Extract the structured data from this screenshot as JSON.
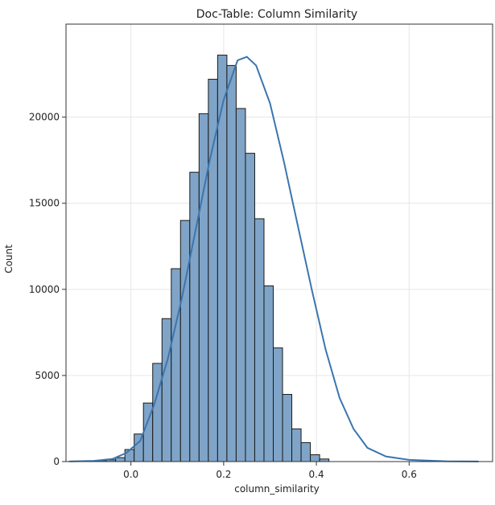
{
  "chart_data": {
    "type": "bar",
    "title": "Doc-Table: Column Similarity",
    "xlabel": "column_similarity",
    "ylabel": "Count",
    "xlim": [
      -0.14,
      0.78
    ],
    "ylim": [
      0,
      25400
    ],
    "xticks": [
      0.0,
      0.2,
      0.4,
      0.6
    ],
    "xtick_labels": [
      "0.0",
      "0.2",
      "0.4",
      "0.6"
    ],
    "yticks": [
      0,
      5000,
      10000,
      15000,
      20000
    ],
    "ytick_labels": [
      "0",
      "5000",
      "10000",
      "15000",
      "20000"
    ],
    "grid": true,
    "bar_color": "#7fa4c7",
    "bar_edge_color": "#1a1a1a",
    "kde_color": "#3b75af",
    "bins": [
      {
        "x0": -0.133,
        "x1": -0.113,
        "count": 20
      },
      {
        "x0": -0.113,
        "x1": -0.093,
        "count": 30
      },
      {
        "x0": -0.093,
        "x1": -0.073,
        "count": 40
      },
      {
        "x0": -0.073,
        "x1": -0.053,
        "count": 60
      },
      {
        "x0": -0.053,
        "x1": -0.033,
        "count": 100
      },
      {
        "x0": -0.033,
        "x1": -0.013,
        "count": 230
      },
      {
        "x0": -0.013,
        "x1": 0.007,
        "count": 700
      },
      {
        "x0": 0.007,
        "x1": 0.027,
        "count": 1600
      },
      {
        "x0": 0.027,
        "x1": 0.047,
        "count": 3400
      },
      {
        "x0": 0.047,
        "x1": 0.067,
        "count": 5700
      },
      {
        "x0": 0.067,
        "x1": 0.087,
        "count": 8300
      },
      {
        "x0": 0.087,
        "x1": 0.107,
        "count": 11200
      },
      {
        "x0": 0.107,
        "x1": 0.127,
        "count": 14000
      },
      {
        "x0": 0.127,
        "x1": 0.147,
        "count": 16800
      },
      {
        "x0": 0.147,
        "x1": 0.167,
        "count": 20200
      },
      {
        "x0": 0.167,
        "x1": 0.187,
        "count": 22200
      },
      {
        "x0": 0.187,
        "x1": 0.207,
        "count": 23600
      },
      {
        "x0": 0.207,
        "x1": 0.227,
        "count": 23000
      },
      {
        "x0": 0.227,
        "x1": 0.247,
        "count": 20500
      },
      {
        "x0": 0.247,
        "x1": 0.267,
        "count": 17900
      },
      {
        "x0": 0.267,
        "x1": 0.287,
        "count": 14100
      },
      {
        "x0": 0.287,
        "x1": 0.307,
        "count": 10200
      },
      {
        "x0": 0.307,
        "x1": 0.327,
        "count": 6600
      },
      {
        "x0": 0.327,
        "x1": 0.347,
        "count": 3900
      },
      {
        "x0": 0.347,
        "x1": 0.367,
        "count": 1900
      },
      {
        "x0": 0.367,
        "x1": 0.387,
        "count": 1100
      },
      {
        "x0": 0.387,
        "x1": 0.407,
        "count": 400
      },
      {
        "x0": 0.407,
        "x1": 0.427,
        "count": 150
      }
    ],
    "kde": [
      [
        -0.13,
        10
      ],
      [
        -0.08,
        40
      ],
      [
        -0.04,
        150
      ],
      [
        -0.01,
        500
      ],
      [
        0.02,
        1200
      ],
      [
        0.05,
        3300
      ],
      [
        0.08,
        6000
      ],
      [
        0.11,
        9500
      ],
      [
        0.14,
        13500
      ],
      [
        0.17,
        17500
      ],
      [
        0.2,
        21000
      ],
      [
        0.23,
        23300
      ],
      [
        0.25,
        23500
      ],
      [
        0.27,
        23000
      ],
      [
        0.3,
        20800
      ],
      [
        0.33,
        17400
      ],
      [
        0.36,
        13700
      ],
      [
        0.39,
        10000
      ],
      [
        0.42,
        6500
      ],
      [
        0.45,
        3700
      ],
      [
        0.48,
        1900
      ],
      [
        0.51,
        800
      ],
      [
        0.55,
        300
      ],
      [
        0.6,
        100
      ],
      [
        0.68,
        20
      ],
      [
        0.75,
        5
      ]
    ]
  }
}
